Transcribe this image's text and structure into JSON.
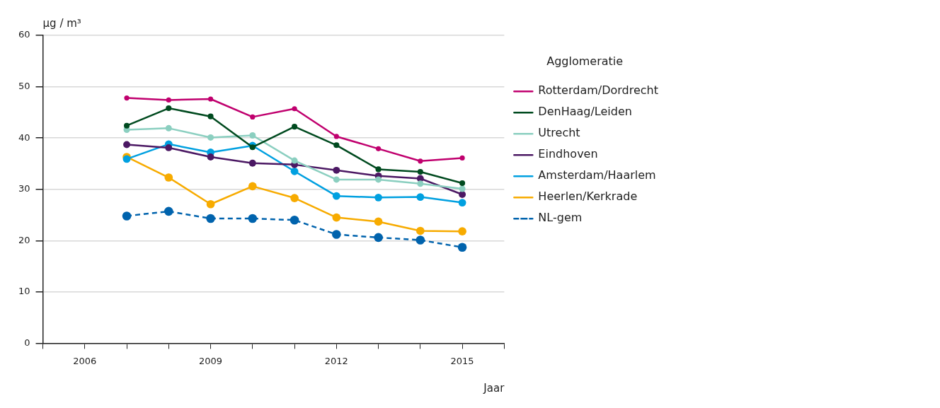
{
  "chart_data": {
    "type": "line",
    "ylabel": "µg / m³",
    "xlabel": "Jaar",
    "legend_title": "Agglomeratie",
    "legend": "right",
    "grid": "y",
    "marker": "circle",
    "x": [
      2007,
      2008,
      2009,
      2010,
      2011,
      2012,
      2013,
      2014,
      2015
    ],
    "xlim": [
      2005,
      2016
    ],
    "xticks": [
      {
        "value": 2005,
        "label": null
      },
      2006,
      {
        "value": 2007,
        "label": null
      },
      {
        "value": 2008,
        "label": null
      },
      2009,
      {
        "value": 2010,
        "label": null
      },
      {
        "value": 2011,
        "label": null
      },
      2012,
      {
        "value": 2013,
        "label": null
      },
      {
        "value": 2014,
        "label": null
      },
      2015,
      {
        "value": 2016,
        "label": null
      }
    ],
    "ylim": [
      0,
      60
    ],
    "yticks": [
      0,
      10,
      20,
      30,
      40,
      50,
      60
    ],
    "series": [
      {
        "name": "Rotterdam/Dordrecht",
        "color": "#c0006e",
        "values": [
          47.8,
          47.4,
          47.6,
          44.1,
          45.7,
          40.3,
          37.9,
          35.5,
          36.1
        ]
      },
      {
        "name": "DenHaag/Leiden",
        "color": "#004a1f",
        "values": [
          42.4,
          45.8,
          44.2,
          38.2,
          42.2,
          38.6,
          33.9,
          33.4,
          31.2
        ]
      },
      {
        "name": "Utrecht",
        "color": "#8bcfc0",
        "values": [
          41.6,
          41.9,
          40.1,
          40.5,
          35.6,
          31.9,
          31.9,
          31.1,
          30.1
        ]
      },
      {
        "name": "Eindhoven",
        "color": "#4b1863",
        "values": [
          38.7,
          38.1,
          36.3,
          35.1,
          34.8,
          33.7,
          32.6,
          32.1,
          29.0
        ]
      },
      {
        "name": "Amsterdam/Haarlem",
        "color": "#00a0e0",
        "values": [
          35.9,
          38.8,
          37.2,
          38.5,
          33.5,
          28.7,
          28.4,
          28.5,
          27.4
        ]
      },
      {
        "name": "Heerlen/Kerkrade",
        "color": "#f7ab00",
        "values": [
          36.3,
          32.3,
          27.1,
          30.6,
          28.3,
          24.5,
          23.7,
          21.9,
          21.8
        ]
      },
      {
        "name": "NL-gem",
        "color": "#0063ad",
        "line_style": "dashed",
        "values": [
          24.8,
          25.7,
          24.3,
          24.3,
          24.0,
          21.2,
          20.6,
          20.1,
          18.7
        ]
      }
    ]
  }
}
